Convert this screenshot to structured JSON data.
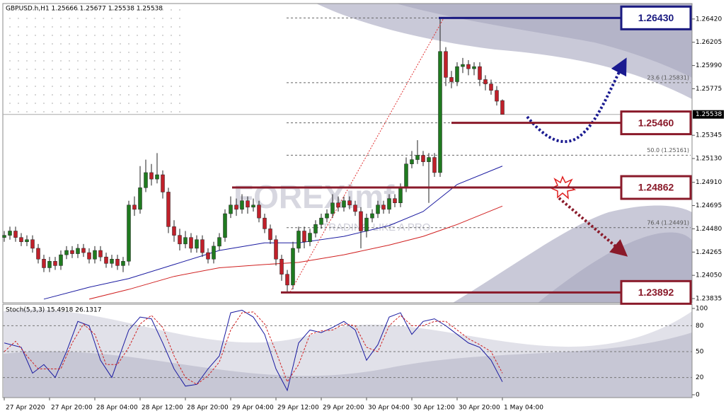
{
  "chart_data": [
    {
      "type": "candlestick",
      "title": "GBPUSD.h,H1  1.25666 1.25677 1.25538 1.25538",
      "watermark": "FOREXimf",
      "watermark_sub": "TRADING LIKE A PRO",
      "categories": [
        "27 Apr 2020",
        null,
        null,
        null,
        null,
        null,
        null,
        null,
        "27 Apr 20:00",
        null,
        null,
        null,
        null,
        null,
        null,
        null,
        "28 Apr 04:00",
        null,
        null,
        null,
        null,
        null,
        null,
        null,
        "28 Apr 12:00",
        null,
        null,
        null,
        null,
        null,
        null,
        null,
        "28 Apr 20:00",
        null,
        null,
        null,
        null,
        null,
        null,
        null,
        "29 Apr 04:00",
        null,
        null,
        null,
        null,
        null,
        null,
        null,
        "29 Apr 12:00",
        null,
        null,
        null,
        null,
        null,
        null,
        null,
        "29 Apr 20:00",
        null,
        null,
        null,
        null,
        null,
        null,
        null,
        "30 Apr 04:00",
        null,
        null,
        null,
        null,
        null,
        null,
        null,
        "30 Apr 12:00",
        null,
        null,
        null,
        null,
        null,
        null,
        null,
        "30 Apr 20:00",
        null,
        null,
        null,
        null,
        null,
        null,
        null,
        "1 May 04:00"
      ],
      "open": [
        1.244,
        1.2442,
        1.2446,
        1.244,
        1.2436,
        1.2438,
        1.243,
        1.242,
        1.2412,
        1.2418,
        1.2414,
        1.2424,
        1.2428,
        1.2425,
        1.243,
        1.2426,
        1.242,
        1.2428,
        1.2422,
        1.2416,
        1.242,
        1.2414,
        1.2418,
        1.247,
        1.2466,
        1.2486,
        1.25,
        1.2494,
        1.2498,
        1.2482,
        1.245,
        1.2442,
        1.2434,
        1.244,
        1.243,
        1.2438,
        1.2426,
        1.242,
        1.2432,
        1.244,
        1.2462,
        1.247,
        1.2466,
        1.2474,
        1.2468,
        1.247,
        1.2458,
        1.2448,
        1.2438,
        1.242,
        1.2406,
        1.2396,
        1.243,
        1.2446,
        1.2436,
        1.2444,
        1.2452,
        1.2458,
        1.2462,
        1.2472,
        1.2468,
        1.2474,
        1.247,
        1.2464,
        1.2446,
        1.2458,
        1.2462,
        1.247,
        1.2466,
        1.2476,
        1.2472,
        1.2486,
        1.2508,
        1.2512,
        1.2516,
        1.251,
        1.2514,
        1.25,
        1.2612,
        1.2588,
        1.2584,
        1.2598,
        1.26,
        1.2596,
        1.2598,
        1.2586,
        1.2582,
        1.2576,
        1.25666
      ],
      "high": [
        1.2446,
        1.245,
        1.245,
        1.2444,
        1.2442,
        1.2442,
        1.2434,
        1.2424,
        1.2422,
        1.2422,
        1.2428,
        1.2432,
        1.2432,
        1.2434,
        1.2434,
        1.243,
        1.2432,
        1.2432,
        1.2426,
        1.2424,
        1.2424,
        1.2422,
        1.2474,
        1.2478,
        1.2506,
        1.2512,
        1.2508,
        1.2518,
        1.2502,
        1.2486,
        1.2456,
        1.2448,
        1.2446,
        1.2444,
        1.2442,
        1.2442,
        1.243,
        1.2436,
        1.2444,
        1.2466,
        1.2478,
        1.2476,
        1.248,
        1.2478,
        1.2476,
        1.2474,
        1.2462,
        1.2452,
        1.2442,
        1.2424,
        1.241,
        1.2436,
        1.245,
        1.245,
        1.2448,
        1.2456,
        1.2462,
        1.2466,
        1.248,
        1.2478,
        1.2478,
        1.2478,
        1.2474,
        1.2468,
        1.2462,
        1.2466,
        1.2474,
        1.2474,
        1.248,
        1.248,
        1.249,
        1.2514,
        1.252,
        1.253,
        1.252,
        1.2518,
        1.2518,
        1.2643,
        1.2616,
        1.2594,
        1.2602,
        1.2606,
        1.2604,
        1.2602,
        1.2602,
        1.259,
        1.2586,
        1.258,
        1.25677
      ],
      "low": [
        1.2436,
        1.2438,
        1.2436,
        1.2432,
        1.2432,
        1.2426,
        1.2416,
        1.2408,
        1.2408,
        1.241,
        1.241,
        1.242,
        1.2421,
        1.2421,
        1.2422,
        1.2416,
        1.2416,
        1.2418,
        1.2412,
        1.2412,
        1.241,
        1.2408,
        1.2414,
        1.246,
        1.2462,
        1.2482,
        1.2488,
        1.249,
        1.2476,
        1.2444,
        1.2436,
        1.2428,
        1.243,
        1.2426,
        1.2426,
        1.2422,
        1.2416,
        1.2416,
        1.2428,
        1.2436,
        1.2458,
        1.246,
        1.2462,
        1.2462,
        1.2464,
        1.2454,
        1.2444,
        1.2434,
        1.2414,
        1.24,
        1.23892,
        1.2392,
        1.2426,
        1.243,
        1.2432,
        1.244,
        1.2448,
        1.2454,
        1.2458,
        1.2464,
        1.2464,
        1.2466,
        1.246,
        1.243,
        1.244,
        1.2454,
        1.2458,
        1.2462,
        1.2462,
        1.2468,
        1.2468,
        1.2482,
        1.2504,
        1.2508,
        1.2506,
        1.2472,
        1.2496,
        1.2496,
        1.258,
        1.2578,
        1.258,
        1.2592,
        1.259,
        1.259,
        1.258,
        1.2576,
        1.2572,
        1.2562,
        1.25538
      ],
      "close": [
        1.2442,
        1.2446,
        1.244,
        1.2436,
        1.2438,
        1.243,
        1.242,
        1.2412,
        1.2418,
        1.2414,
        1.2424,
        1.2428,
        1.2425,
        1.243,
        1.2426,
        1.242,
        1.2428,
        1.2422,
        1.2416,
        1.242,
        1.2414,
        1.2418,
        1.247,
        1.2466,
        1.2486,
        1.25,
        1.2494,
        1.2498,
        1.2482,
        1.245,
        1.2442,
        1.2434,
        1.244,
        1.243,
        1.2438,
        1.2426,
        1.242,
        1.2432,
        1.244,
        1.2462,
        1.247,
        1.2466,
        1.2474,
        1.2468,
        1.247,
        1.2458,
        1.2448,
        1.2438,
        1.242,
        1.2406,
        1.2396,
        1.243,
        1.2446,
        1.2436,
        1.2444,
        1.2452,
        1.2458,
        1.2462,
        1.2472,
        1.2468,
        1.2474,
        1.247,
        1.2464,
        1.2446,
        1.2458,
        1.2462,
        1.247,
        1.2466,
        1.2476,
        1.2472,
        1.2486,
        1.2508,
        1.2512,
        1.2516,
        1.251,
        1.2514,
        1.25,
        1.2612,
        1.2588,
        1.2584,
        1.2598,
        1.26,
        1.2596,
        1.2598,
        1.2586,
        1.2582,
        1.2576,
        1.2566,
        1.25538
      ],
      "up_color": "#1f7a1f",
      "down_color": "#c0202a",
      "xlim": [
        -0.25,
        121.5
      ],
      "ylim": [
        1.23796,
        1.26563
      ],
      "yticks": [
        {
          "value": 1.2642,
          "label": "1.26420"
        },
        1.26205,
        {
          "value": 1.2599,
          "label": "1.25990"
        },
        1.25775,
        1.25345,
        {
          "value": 1.2513,
          "label": "1.25130"
        },
        {
          "value": 1.2491,
          "label": "1.24910"
        },
        1.24695,
        {
          "value": 1.2448,
          "label": "1.24480"
        },
        1.24265,
        {
          "value": 1.2405,
          "label": "1.24050"
        },
        1.23835
      ],
      "current_price": 1.25538,
      "moving_averages": [
        {
          "color": "#1a1aa0",
          "x": [
            7,
            15,
            22,
            30,
            38,
            46,
            52,
            60,
            68,
            74,
            80,
            88
          ],
          "values": [
            1.2383,
            1.2394,
            1.2402,
            1.2415,
            1.2428,
            1.2435,
            1.2435,
            1.2441,
            1.2451,
            1.2464,
            1.2489,
            1.2506
          ]
        },
        {
          "color": "#d02020",
          "x": [
            15,
            22,
            30,
            38,
            46,
            52,
            60,
            68,
            74,
            80,
            88
          ],
          "values": [
            1.2383,
            1.2392,
            1.2404,
            1.2412,
            1.2415,
            1.2417,
            1.2424,
            1.2433,
            1.2441,
            1.2452,
            1.2469
          ]
        }
      ],
      "fib_levels": [
        {
          "value": 1.25831,
          "label": "23.6 (1.25831)"
        },
        {
          "value": 1.25161,
          "label": "50.0 (1.25161)"
        },
        {
          "value": 1.24491,
          "label": "76.4 (1.24491)"
        }
      ],
      "levels": [
        {
          "value": 1.2643,
          "label": "1.26430",
          "color": "#1a1a80"
        },
        {
          "value": 1.2546,
          "label": "1.25460",
          "color": "#8a1a2a"
        },
        {
          "value": 1.24862,
          "label": "1.24862",
          "color": "#8a1a2a"
        },
        {
          "value": 1.23892,
          "label": "1.23892",
          "color": "#8a1a2a"
        }
      ]
    },
    {
      "type": "line",
      "title": "Stoch(5,3,3) 15.4918 26.1317",
      "xlim": [
        -0.25,
        121.5
      ],
      "ylim": [
        -3.3,
        104.9
      ],
      "yticks": [
        100,
        80,
        50,
        20,
        0
      ],
      "series": [
        {
          "color": "#1a1aa0",
          "x": [
            0,
            3,
            5,
            7,
            9,
            11,
            13,
            15,
            17,
            19,
            22,
            24,
            26,
            28,
            30,
            32,
            34,
            36,
            38,
            40,
            42,
            44,
            46,
            48,
            50,
            52,
            54,
            56,
            58,
            60,
            62,
            64,
            66,
            68,
            70,
            72,
            74,
            76,
            78,
            80,
            82,
            84,
            86,
            88
          ],
          "values": [
            60,
            55,
            25,
            35,
            20,
            50,
            85,
            80,
            40,
            20,
            75,
            90,
            88,
            60,
            30,
            10,
            12,
            30,
            45,
            95,
            98,
            90,
            70,
            30,
            5,
            60,
            75,
            72,
            78,
            85,
            75,
            40,
            58,
            90,
            95,
            70,
            85,
            88,
            80,
            70,
            60,
            55,
            40,
            15
          ]
        },
        {
          "color": "#d02020",
          "x": [
            0,
            2,
            4,
            6,
            8,
            10,
            12,
            14,
            16,
            18,
            20,
            22,
            24,
            26,
            28,
            30,
            32,
            34,
            36,
            38,
            40,
            42,
            44,
            46,
            48,
            50,
            52,
            54,
            56,
            58,
            60,
            62,
            64,
            66,
            68,
            70,
            72,
            74,
            76,
            78,
            80,
            82,
            84,
            86,
            88
          ],
          "values": [
            50,
            62,
            45,
            30,
            30,
            30,
            60,
            82,
            70,
            35,
            35,
            55,
            82,
            92,
            78,
            45,
            20,
            12,
            22,
            38,
            75,
            95,
            96,
            82,
            50,
            15,
            35,
            70,
            74,
            75,
            82,
            80,
            55,
            50,
            80,
            92,
            80,
            80,
            85,
            85,
            75,
            65,
            58,
            50,
            25
          ]
        }
      ]
    }
  ]
}
